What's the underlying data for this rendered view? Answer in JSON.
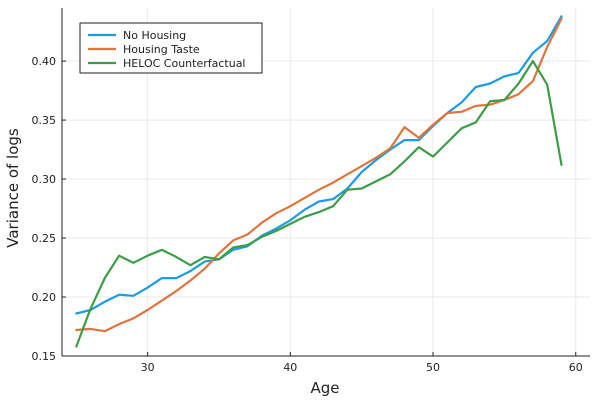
{
  "chart_data": {
    "type": "line",
    "xlabel": "Age",
    "ylabel": "Variance of logs",
    "xlim": [
      24,
      61
    ],
    "ylim": [
      0.15,
      0.445
    ],
    "xticks": [
      30,
      40,
      50,
      60
    ],
    "yticks": [
      0.15,
      0.2,
      0.25,
      0.3,
      0.35,
      0.4
    ],
    "xtick_labels": [
      "30",
      "40",
      "50",
      "60"
    ],
    "ytick_labels": [
      "0.15",
      "0.20",
      "0.25",
      "0.30",
      "0.35",
      "0.40"
    ],
    "grid": true,
    "legend_position": "top-left",
    "series": [
      {
        "name": "No Housing",
        "color": "#1f9be6",
        "x": [
          25,
          26,
          27,
          28,
          29,
          30,
          31,
          32,
          33,
          34,
          35,
          36,
          37,
          38,
          39,
          40,
          41,
          42,
          43,
          44,
          45,
          46,
          47,
          48,
          49,
          50,
          51,
          52,
          53,
          54,
          55,
          56,
          57,
          58,
          59
        ],
        "y": [
          0.186,
          0.189,
          0.196,
          0.202,
          0.201,
          0.208,
          0.216,
          0.216,
          0.222,
          0.23,
          0.232,
          0.24,
          0.243,
          0.252,
          0.258,
          0.265,
          0.274,
          0.281,
          0.283,
          0.292,
          0.306,
          0.316,
          0.325,
          0.333,
          0.333,
          0.345,
          0.356,
          0.365,
          0.378,
          0.381,
          0.387,
          0.39,
          0.407,
          0.417,
          0.438
        ]
      },
      {
        "name": "Housing Taste",
        "color": "#e0743c",
        "x": [
          25,
          26,
          27,
          28,
          29,
          30,
          31,
          32,
          33,
          34,
          35,
          36,
          37,
          38,
          39,
          40,
          41,
          42,
          43,
          44,
          45,
          46,
          47,
          48,
          49,
          50,
          51,
          52,
          53,
          54,
          55,
          56,
          57,
          58,
          59
        ],
        "y": [
          0.172,
          0.173,
          0.171,
          0.177,
          0.182,
          0.189,
          0.197,
          0.205,
          0.214,
          0.224,
          0.237,
          0.248,
          0.253,
          0.263,
          0.271,
          0.277,
          0.284,
          0.291,
          0.297,
          0.304,
          0.311,
          0.318,
          0.326,
          0.344,
          0.335,
          0.346,
          0.356,
          0.357,
          0.362,
          0.363,
          0.367,
          0.372,
          0.383,
          0.412,
          0.436
        ]
      },
      {
        "name": "HELOC Counterfactual",
        "color": "#3b9e45",
        "x": [
          25,
          26,
          27,
          28,
          29,
          30,
          31,
          32,
          33,
          34,
          35,
          36,
          37,
          38,
          39,
          40,
          41,
          42,
          43,
          44,
          45,
          46,
          47,
          48,
          49,
          50,
          51,
          52,
          53,
          54,
          55,
          56,
          57,
          58,
          59
        ],
        "y": [
          0.158,
          0.19,
          0.216,
          0.235,
          0.229,
          0.235,
          0.24,
          0.234,
          0.227,
          0.234,
          0.232,
          0.242,
          0.244,
          0.251,
          0.256,
          0.262,
          0.268,
          0.272,
          0.277,
          0.291,
          0.292,
          0.298,
          0.304,
          0.315,
          0.327,
          0.319,
          0.331,
          0.343,
          0.348,
          0.366,
          0.367,
          0.381,
          0.4,
          0.38,
          0.312
        ]
      }
    ]
  }
}
